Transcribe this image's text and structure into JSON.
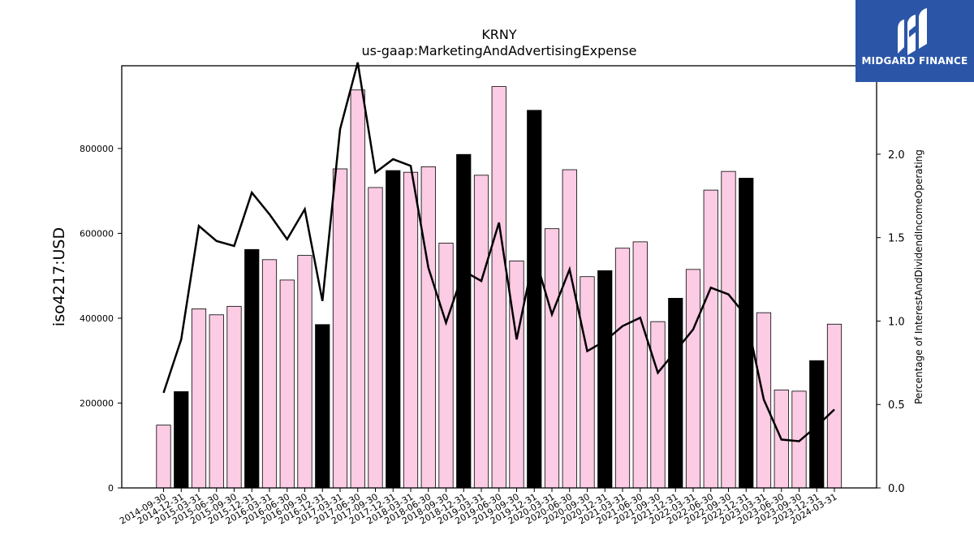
{
  "chart_data": {
    "type": "bar",
    "title": "KRNY",
    "subtitle": "us-gaap:MarketingAndAdvertisingExpense",
    "ylabel": "iso4217:USD",
    "y2label": "Percentage of InterestAndDividendIncomeOperating",
    "ylim": [
      0,
      995000
    ],
    "y2lim": [
      0,
      2.53
    ],
    "yticks": [
      0,
      200000,
      400000,
      600000,
      800000
    ],
    "y2ticks": [
      "0.0",
      "0.5",
      "1.0",
      "1.5",
      "2.0"
    ],
    "categories": [
      "2014-09-30",
      "2014-12-31",
      "2015-03-31",
      "2015-06-30",
      "2015-09-30",
      "2015-12-31",
      "2016-03-31",
      "2016-06-30",
      "2016-09-30",
      "2016-12-31",
      "2017-03-31",
      "2017-06-30",
      "2017-09-30",
      "2017-12-31",
      "2018-03-31",
      "2018-06-30",
      "2018-09-30",
      "2018-12-31",
      "2019-03-31",
      "2019-06-30",
      "2019-09-30",
      "2019-12-31",
      "2020-03-31",
      "2020-06-30",
      "2020-09-30",
      "2020-12-31",
      "2021-03-31",
      "2021-06-30",
      "2021-09-30",
      "2021-12-31",
      "2022-03-31",
      "2022-06-30",
      "2022-09-30",
      "2022-12-31",
      "2023-03-31",
      "2023-06-30",
      "2023-09-30",
      "2023-12-31",
      "2024-03-31"
    ],
    "series": [
      {
        "type": "bar",
        "values": [
          148000,
          227000,
          422000,
          408000,
          428000,
          562000,
          538000,
          490000,
          548000,
          385000,
          752000,
          938000,
          708000,
          748000,
          744000,
          757000,
          577000,
          786000,
          737000,
          946000,
          535000,
          890000,
          611000,
          750000,
          498000,
          512000,
          565000,
          580000,
          392000,
          447000,
          515000,
          702000,
          746000,
          730000,
          413000,
          231000,
          228000,
          300000,
          386000
        ],
        "highlight": [
          false,
          true,
          false,
          false,
          false,
          true,
          false,
          false,
          false,
          true,
          false,
          false,
          false,
          true,
          false,
          false,
          false,
          true,
          false,
          false,
          false,
          true,
          false,
          false,
          false,
          true,
          false,
          false,
          false,
          true,
          false,
          false,
          false,
          true,
          false,
          false,
          false,
          true,
          false
        ],
        "color": "#fccbe4",
        "highlight_color": "#000000"
      },
      {
        "type": "line",
        "axis": "right",
        "color": "#000000",
        "values": [
          0.57,
          0.89,
          1.57,
          1.48,
          1.45,
          1.77,
          1.64,
          1.49,
          1.67,
          1.12,
          2.15,
          2.55,
          1.89,
          1.97,
          1.93,
          1.32,
          0.99,
          1.3,
          1.24,
          1.59,
          0.89,
          1.4,
          1.04,
          1.31,
          0.82,
          0.88,
          0.97,
          1.02,
          0.69,
          0.82,
          0.95,
          1.2,
          1.16,
          1.03,
          0.53,
          0.29,
          0.28,
          0.37,
          0.47
        ]
      }
    ]
  },
  "logo": {
    "text": "MIDGARD FINANCE",
    "background": "#2b56a8"
  }
}
